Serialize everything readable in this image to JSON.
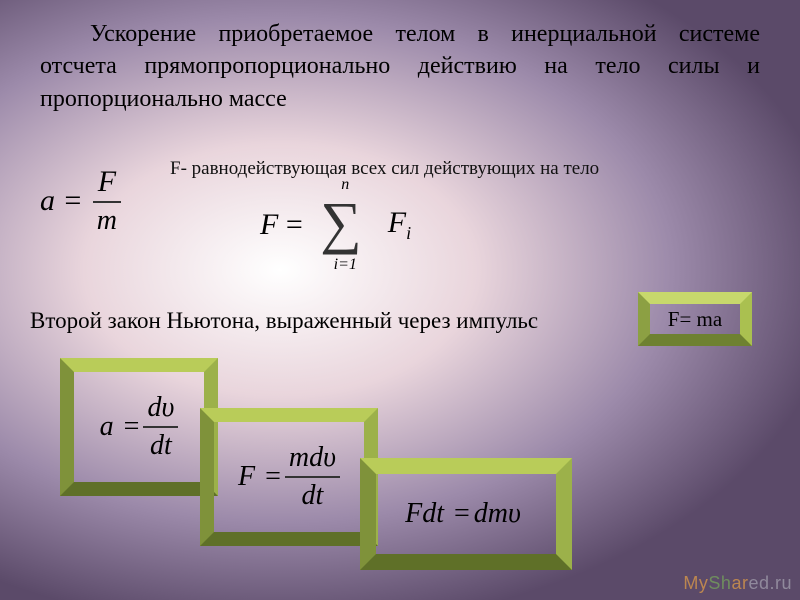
{
  "paragraph": "Ускорение приобретаемое телом в инерциальной системе отсчета прямопропорционально действию на тело силы и пропорционально массе",
  "note_F": "F- равнодействующая всех сил действующих на тело",
  "eqFM": {
    "lhs": "a =",
    "num": "F",
    "den": "m"
  },
  "eqSum": {
    "lhs": "F",
    "eqsign": "=",
    "upper": "n",
    "lower": "i=1",
    "sigma": "∑",
    "rhs_base": "F",
    "rhs_sub": "i"
  },
  "paragraph2": "Второй закон Ньютона, выраженный через импульс",
  "Fma": "F= ma",
  "eqA": {
    "lhs": "a",
    "eq": "=",
    "num": "dυ",
    "den": "dt"
  },
  "eqB": {
    "lhs": "F",
    "eq": "=",
    "num": "mdυ",
    "den": "dt"
  },
  "eqC": {
    "lhs": "Fdt",
    "eq": "=",
    "rhs": "dmυ"
  },
  "watermark": {
    "t1": "My",
    "t2": "Sh",
    "t3": "ar",
    "t4": "ed.ru"
  },
  "frame_colors": {
    "top": "#b9cc59",
    "left": "#7f923a",
    "right": "#9cb14a",
    "bottom": "#5f7028"
  },
  "background_gradient": {
    "center": "#ffffff",
    "mid": "#e9d5dc",
    "outer": "#9c8aaa",
    "edge": "#5b4a69"
  }
}
